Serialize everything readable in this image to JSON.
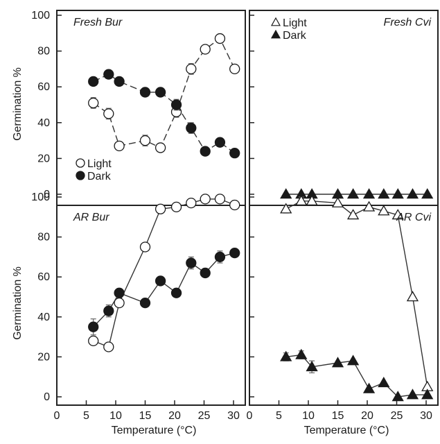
{
  "figure": {
    "y_axis_label": "Germination %",
    "x_axis_label": "Temperature (°C)"
  },
  "chart_data": [
    {
      "type": "line",
      "title": "Fresh Bur",
      "xlabel": "",
      "ylabel": "Germination %",
      "xlim": [
        0,
        32
      ],
      "ylim": [
        -5,
        100
      ],
      "yticks": [
        0,
        20,
        40,
        60,
        80,
        100
      ],
      "grid": false,
      "legend_position": "bottom-left",
      "series": [
        {
          "name": "Light",
          "marker": "circle-open",
          "x": [
            6.2,
            8.8,
            10.6,
            15,
            17.6,
            20.3,
            22.8,
            25.2,
            27.7,
            30.2
          ],
          "y": [
            51,
            45,
            27,
            30,
            26,
            46,
            70,
            81,
            87,
            70
          ],
          "err": [
            3,
            3,
            2,
            3,
            0,
            3,
            3,
            0,
            0,
            0
          ]
        },
        {
          "name": "Dark",
          "marker": "circle-filled",
          "x": [
            6.2,
            8.8,
            10.6,
            15,
            17.6,
            20.3,
            22.8,
            25.2,
            27.7,
            30.2
          ],
          "y": [
            63,
            67,
            63,
            57,
            57,
            50,
            37,
            24,
            29,
            23
          ],
          "err": [
            0,
            0,
            0,
            0,
            2,
            3,
            3,
            0,
            0,
            0
          ]
        }
      ]
    },
    {
      "type": "line",
      "title": "Fresh Cvi",
      "xlabel": "",
      "ylabel": "",
      "xlim": [
        0,
        32
      ],
      "ylim": [
        -5,
        100
      ],
      "yticks": [
        0,
        20,
        40,
        60,
        80,
        100
      ],
      "grid": false,
      "legend_position": "top-left",
      "series": [
        {
          "name": "Light",
          "marker": "triangle-open",
          "x": [],
          "y": [],
          "err": []
        },
        {
          "name": "Dark",
          "marker": "triangle-filled",
          "x": [
            6.2,
            8.8,
            10.6,
            15,
            17.6,
            20.3,
            22.8,
            25.2,
            27.7,
            30.2
          ],
          "y": [
            0,
            0,
            0,
            0,
            0,
            0,
            0,
            0,
            0,
            0
          ],
          "err": [
            0,
            0,
            0,
            0,
            0,
            0,
            0,
            0,
            0,
            0
          ]
        }
      ]
    },
    {
      "type": "line",
      "title": "AR Bur",
      "xlabel": "Temperature (°C)",
      "ylabel": "Germination %",
      "xlim": [
        0,
        32
      ],
      "ylim": [
        0,
        100
      ],
      "xticks": [
        0,
        5,
        10,
        15,
        20,
        25,
        30
      ],
      "yticks": [
        0,
        20,
        40,
        60,
        80,
        100
      ],
      "grid": false,
      "series": [
        {
          "name": "Light",
          "marker": "circle-open",
          "x": [
            6.2,
            8.8,
            10.6,
            15,
            17.6,
            20.3,
            22.8,
            25.2,
            27.7,
            30.2
          ],
          "y": [
            28,
            25,
            47,
            75,
            94,
            95,
            97,
            99,
            99,
            96
          ],
          "err": [
            2,
            0,
            0,
            0,
            0,
            0,
            2,
            0,
            0,
            0
          ]
        },
        {
          "name": "Dark",
          "marker": "circle-filled",
          "x": [
            6.2,
            8.8,
            10.6,
            15,
            17.6,
            20.3,
            22.8,
            25.2,
            27.7,
            30.2
          ],
          "y": [
            35,
            43,
            52,
            47,
            58,
            52,
            67,
            62,
            70,
            72
          ],
          "err": [
            4,
            3,
            0,
            0,
            0,
            0,
            3,
            0,
            3,
            0
          ]
        }
      ]
    },
    {
      "type": "line",
      "title": "AR Cvi",
      "xlabel": "Temperature (°C)",
      "ylabel": "",
      "xlim": [
        0,
        32
      ],
      "ylim": [
        0,
        100
      ],
      "xticks": [
        0,
        5,
        10,
        15,
        20,
        25,
        30
      ],
      "yticks": [
        0,
        20,
        40,
        60,
        80,
        100
      ],
      "grid": false,
      "series": [
        {
          "name": "Light",
          "marker": "triangle-open",
          "x": [
            6.2,
            8.8,
            10.6,
            15,
            17.6,
            20.3,
            22.8,
            25.2,
            27.7,
            30.2
          ],
          "y": [
            94,
            98,
            98,
            97,
            91,
            95,
            93,
            91,
            50,
            5
          ],
          "err": [
            2,
            2,
            0,
            0,
            0,
            0,
            0,
            0,
            0,
            0
          ]
        },
        {
          "name": "Dark",
          "marker": "triangle-filled",
          "x": [
            6.2,
            8.8,
            10.6,
            15,
            17.6,
            20.3,
            22.8,
            25.2,
            27.7,
            30.2
          ],
          "y": [
            20,
            21,
            15,
            17,
            18,
            4,
            7,
            0,
            1,
            1
          ],
          "err": [
            2,
            2,
            3,
            0,
            0,
            0,
            0,
            0,
            0,
            0
          ]
        }
      ]
    }
  ]
}
